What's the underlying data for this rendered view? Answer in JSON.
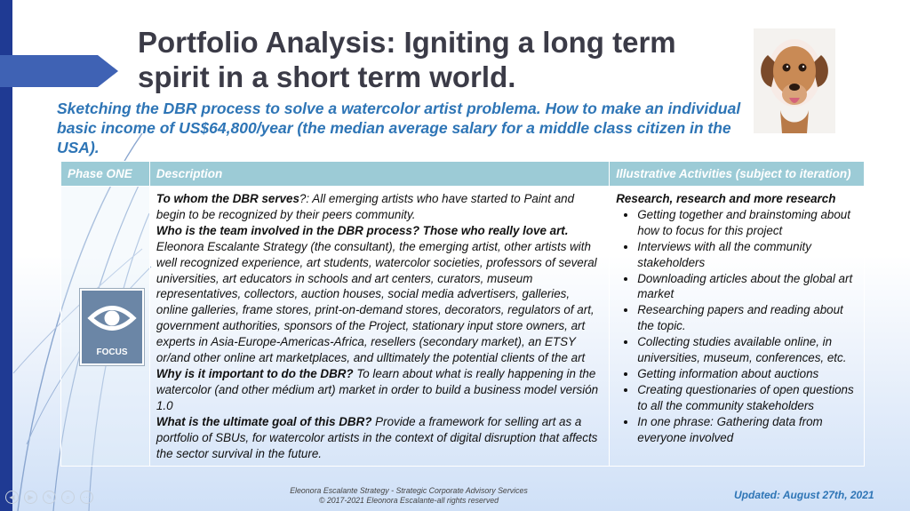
{
  "title": "Portfolio Analysis: Igniting a long term spirit in a short term world.",
  "subtitle": "Sketching the DBR process to solve a watercolor artist problema. How to make an individual basic income of US$64,800/year (the median average salary for a middle class citizen in the USA).",
  "table": {
    "headers": [
      "Phase ONE",
      "Description",
      "Illustrative Activities (subject to iteration)"
    ],
    "description": [
      {
        "q": "To whom the DBR serves",
        "a": "?: All emerging artists who have started to Paint and begin to be recognized by their peers community."
      },
      {
        "q": "Who is the team involved in the DBR process? Those who really love art.",
        "a": " Eleonora Escalante Strategy (the consultant), the emerging artist, other artists with well recognized experience, art students, watercolor societies, professors of several universities, art educators in schools and art centers, curators, museum representatives, collectors, auction houses, social media advertisers, galleries, online galleries, frame stores, print-on-demand stores, decorators, regulators of art, government authorities, sponsors of the Project, stationary input store owners, art experts in Asia-Europe-Americas-Africa, resellers (secondary market), an ETSY or/and other online art marketplaces, and ulltimately the potential clients of the art"
      },
      {
        "q": "Why is it important to do the DBR?",
        "a": " To learn about what is really happening in the watercolor (and other médium art) market in order to build a business model versión 1.0"
      },
      {
        "q": "What is the ultimate goal of this DBR?",
        "a": " Provide a framework for selling art as a portfolio of SBUs, for watercolor artists in the context of digital disruption that affects the sector survival in the future."
      }
    ],
    "activities_heading": "Research, research and more research",
    "activities": [
      "Getting together and brainstoming about how to focus for this project",
      "Interviews with all the community stakeholders",
      "Downloading articles about the global art market",
      "Researching papers and reading about the topic.",
      "Collecting studies available online, in universities, museum, conferences, etc.",
      "Getting information about auctions",
      "Creating questionaries of open questions to all the community stakeholders",
      "In one phrase: Gathering data from everyone involved"
    ]
  },
  "focus_label": "FOCUS",
  "footer": {
    "line1": "Eleonora Escalante Strategy - Strategic Corporate Advisory Services",
    "line2": "© 2017-2021  Eleonora Escalante-all rights reserved"
  },
  "updated": "Updated: August 27th, 2021",
  "colors": {
    "title": "#3b3b47",
    "accent": "#2e75b6",
    "header_fill": "#9ccbd6",
    "arrow": "#3f62b4"
  },
  "icons": [
    "arrow-icon",
    "eye-icon",
    "dog-illustration"
  ]
}
